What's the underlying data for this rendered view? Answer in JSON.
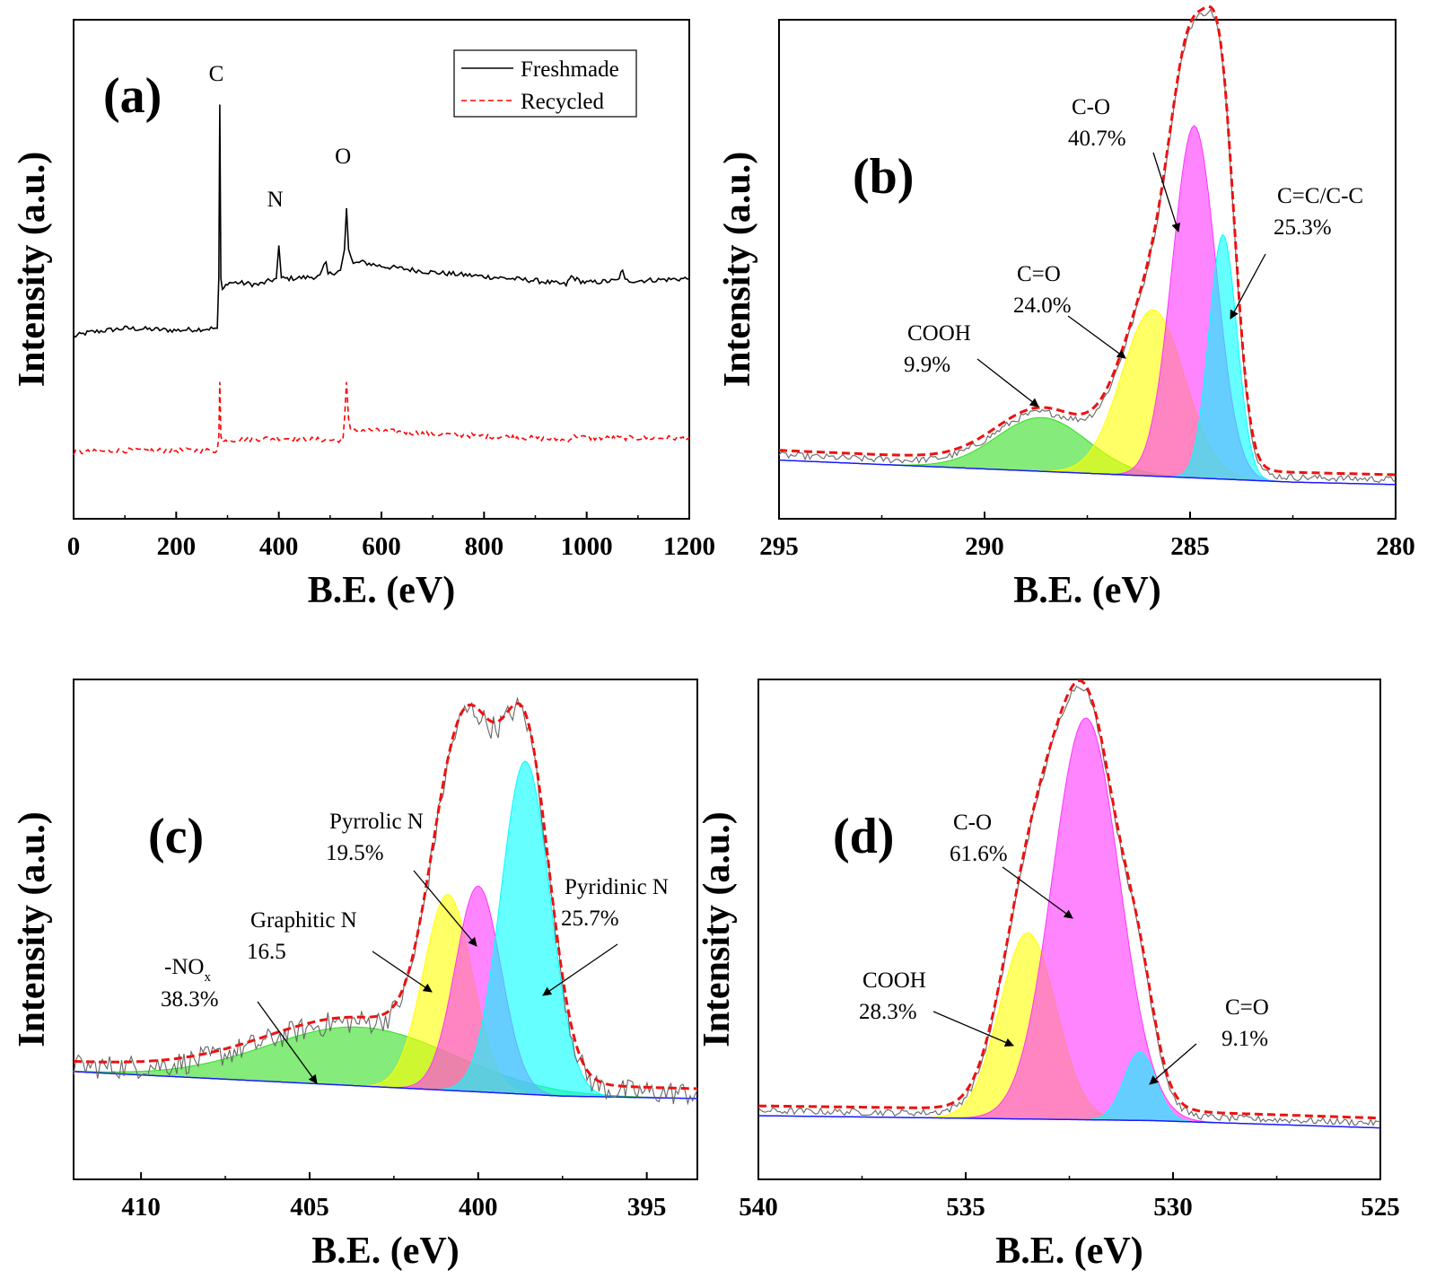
{
  "chart_data": [
    {
      "type": "line",
      "panel_label": "(a)",
      "xlabel": "B.E. (eV)",
      "ylabel": "Intensity (a.u.)",
      "xlim": [
        0,
        1200
      ],
      "x_ticks": [
        "0",
        "200",
        "400",
        "600",
        "800",
        "1000",
        "1200"
      ],
      "legend": {
        "position": "top-right",
        "entries": [
          "Freshmade",
          "Recycled"
        ]
      },
      "peak_labels": [
        {
          "text": "C",
          "x": 285
        },
        {
          "text": "N",
          "x": 400
        },
        {
          "text": "O",
          "x": 532
        }
      ],
      "series": [
        {
          "name": "Freshmade",
          "color": "#000000",
          "style": "solid",
          "x": [
            0,
            30,
            100,
            200,
            280,
            283,
            285,
            287,
            290,
            300,
            320,
            360,
            395,
            400,
            405,
            420,
            480,
            492,
            496,
            520,
            528,
            532,
            536,
            545,
            560,
            600,
            700,
            800,
            900,
            960,
            970,
            985,
            1000,
            1060,
            1070,
            1075,
            1100,
            1200
          ],
          "y": [
            0.44,
            0.45,
            0.46,
            0.455,
            0.46,
            0.58,
            1.0,
            0.58,
            0.55,
            0.57,
            0.57,
            0.565,
            0.58,
            0.66,
            0.58,
            0.58,
            0.585,
            0.62,
            0.59,
            0.6,
            0.65,
            0.75,
            0.65,
            0.615,
            0.62,
            0.61,
            0.595,
            0.585,
            0.575,
            0.565,
            0.585,
            0.575,
            0.57,
            0.575,
            0.6,
            0.575,
            0.575,
            0.58
          ]
        },
        {
          "name": "Recycled",
          "color": "#ff0000",
          "style": "dashed",
          "x": [
            0,
            100,
            200,
            280,
            283,
            285,
            287,
            290,
            300,
            400,
            500,
            525,
            528,
            532,
            536,
            540,
            560,
            700,
            900,
            960,
            980,
            1000,
            1100,
            1200
          ],
          "y": [
            0.16,
            0.165,
            0.165,
            0.165,
            0.2,
            0.33,
            0.2,
            0.185,
            0.19,
            0.195,
            0.19,
            0.19,
            0.24,
            0.33,
            0.24,
            0.21,
            0.215,
            0.205,
            0.195,
            0.19,
            0.2,
            0.195,
            0.195,
            0.195
          ]
        }
      ]
    },
    {
      "type": "area",
      "panel_label": "(b)",
      "xlabel": "B.E. (eV)",
      "ylabel": "Intensity (a.u.)",
      "xlim": [
        295,
        280
      ],
      "x_ticks": [
        "295",
        "290",
        "285",
        "280"
      ],
      "baseline": [
        [
          295,
          0.12
        ],
        [
          282.5,
          0.075
        ],
        [
          280,
          0.07
        ]
      ],
      "components": [
        {
          "name": "COOH",
          "percent": "9.9%",
          "center": 288.6,
          "height": 0.11,
          "fwhm": 2.6,
          "color": "#33dd22"
        },
        {
          "name": "C=O",
          "percent": "24.0%",
          "center": 285.9,
          "height": 0.34,
          "fwhm": 1.8,
          "color": "#ffff00"
        },
        {
          "name": "C-O",
          "percent": "40.7%",
          "center": 284.9,
          "height": 0.72,
          "fwhm": 1.25,
          "color": "#ff33ff"
        },
        {
          "name": "C=C/C-C",
          "percent": "25.3%",
          "center": 284.2,
          "height": 0.5,
          "fwhm": 0.8,
          "color": "#00ffff"
        }
      ],
      "annotations": [
        {
          "lines": [
            "C-O",
            "40.7%"
          ]
        },
        {
          "lines": [
            "C=C/C-C",
            "25.3%"
          ]
        },
        {
          "lines": [
            "C=O",
            "24.0%"
          ]
        },
        {
          "lines": [
            "COOH",
            "9.9%"
          ]
        }
      ]
    },
    {
      "type": "area",
      "panel_label": "(c)",
      "xlabel": "B.E. (eV)",
      "ylabel": "Intensity (a.u.)",
      "xlim": [
        412,
        393.5
      ],
      "x_ticks": [
        "410",
        "405",
        "400",
        "395"
      ],
      "baseline": [
        [
          412,
          0.22
        ],
        [
          397.5,
          0.17
        ],
        [
          393.5,
          0.165
        ]
      ],
      "components": [
        {
          "name": "-NOx",
          "percent": "38.3%",
          "center": 403.5,
          "height": 0.12,
          "fwhm": 6.5,
          "color": "#33dd22"
        },
        {
          "name": "Graphitic N",
          "percent": "16.5",
          "center": 400.9,
          "height": 0.4,
          "fwhm": 1.7,
          "color": "#ffff00"
        },
        {
          "name": "Pyrrolic N",
          "percent": "19.5%",
          "center": 400.0,
          "height": 0.42,
          "fwhm": 1.6,
          "color": "#ff33ff"
        },
        {
          "name": "Pyridinic N",
          "percent": "25.7%",
          "center": 398.6,
          "height": 0.68,
          "fwhm": 1.7,
          "color": "#00ffff"
        }
      ],
      "annotations": [
        {
          "lines": [
            "Pyrrolic N",
            "19.5%"
          ]
        },
        {
          "lines": [
            "Pyridinic N",
            "25.7%"
          ]
        },
        {
          "lines": [
            "Graphitic N",
            "16.5"
          ]
        },
        {
          "lines": [
            "-NO",
            "x",
            "38.3%"
          ]
        }
      ]
    },
    {
      "type": "area",
      "panel_label": "(d)",
      "xlabel": "B.E. (eV)",
      "ylabel": "Intensity (a.u.)",
      "xlim": [
        540,
        525
      ],
      "x_ticks": [
        "540",
        "535",
        "530",
        "525"
      ],
      "baseline": [
        [
          540,
          0.13
        ],
        [
          530.5,
          0.12
        ],
        [
          525,
          0.105
        ]
      ],
      "components": [
        {
          "name": "COOH",
          "percent": "28.3%",
          "center": 533.5,
          "height": 0.38,
          "fwhm": 1.6,
          "color": "#ffff00"
        },
        {
          "name": "C-O",
          "percent": "61.6%",
          "center": 532.1,
          "height": 0.82,
          "fwhm": 1.9,
          "color": "#ff33ff"
        },
        {
          "name": "C=O",
          "percent": "9.1%",
          "center": 530.8,
          "height": 0.14,
          "fwhm": 0.9,
          "color": "#00ffff"
        }
      ],
      "annotations": [
        {
          "lines": [
            "C-O",
            "61.6%"
          ]
        },
        {
          "lines": [
            "COOH",
            "28.3%"
          ]
        },
        {
          "lines": [
            "C=O",
            "9.1%"
          ]
        }
      ]
    }
  ]
}
